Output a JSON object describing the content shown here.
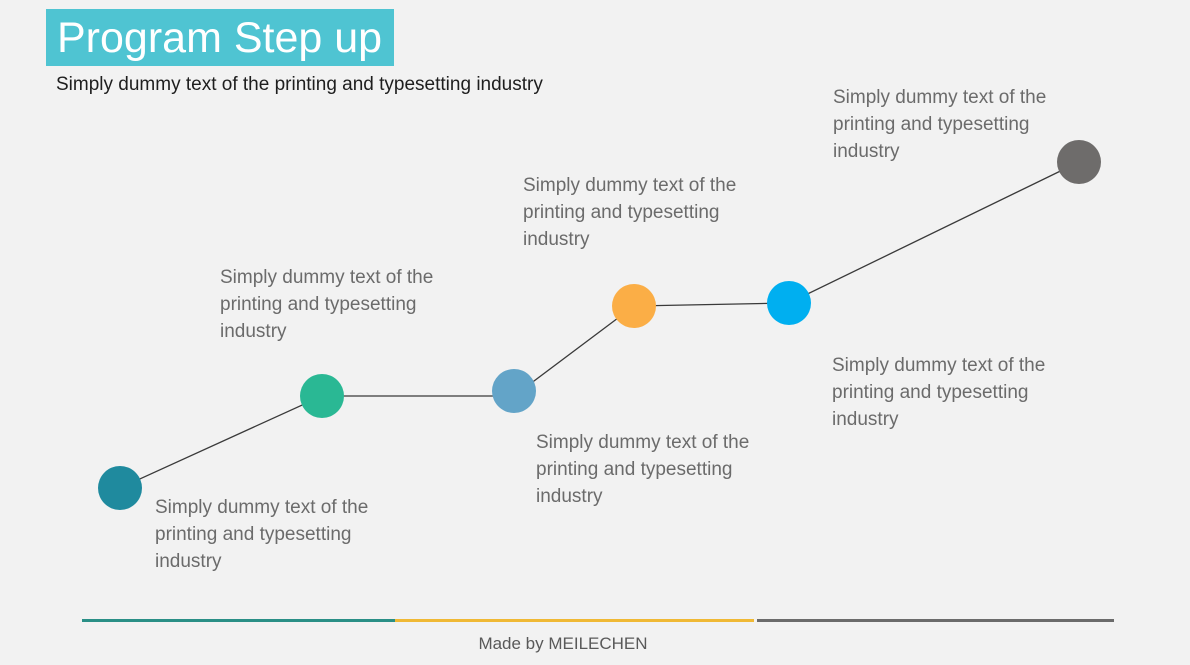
{
  "title": "Program Step up",
  "subtitle": "Simply dummy text of the printing and typesetting industry",
  "steps": [
    {
      "color": "#1f8a9e",
      "text": [
        "Simply dummy text of the",
        "printing and typesetting",
        "industry"
      ]
    },
    {
      "color": "#2ab894",
      "text": [
        "Simply dummy text of the",
        "printing and typesetting",
        "industry"
      ]
    },
    {
      "color": "#63a4c8",
      "text": [
        "Simply dummy text of the",
        "printing and typesetting",
        "industry"
      ]
    },
    {
      "color": "#fbae46",
      "text": [
        "Simply dummy text of the",
        "printing and typesetting",
        "industry"
      ]
    },
    {
      "color": "#00aff0",
      "text": [
        "Simply dummy text of the",
        "printing and typesetting",
        "industry"
      ]
    },
    {
      "color": "#6e6c6b",
      "text": [
        "Simply dummy text of the",
        "printing and typesetting",
        "industry"
      ]
    }
  ],
  "line_color": "#3a3a3a",
  "footer_bars": [
    "#2a8f86",
    "#f0b935",
    "#6b6b6b"
  ],
  "footer": "Made by MEILECHEN"
}
